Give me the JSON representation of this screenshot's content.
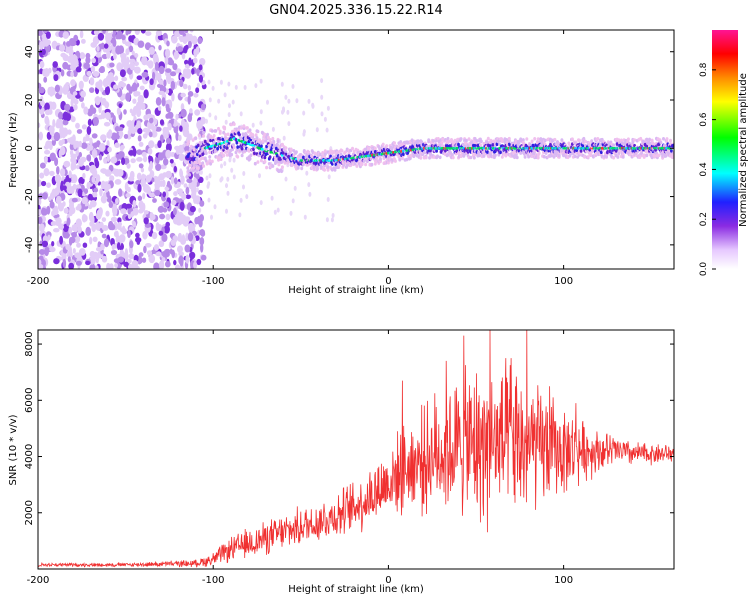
{
  "title": "GN04.2025.336.15.22.R14",
  "chart_data": [
    {
      "type": "heatmap",
      "xlabel": "Height of straight line (km)",
      "ylabel": "Frequency (Hz)",
      "xlim": [
        -200,
        163
      ],
      "ylim": [
        -50,
        49
      ],
      "xticks": [
        -200,
        -100,
        0,
        100
      ],
      "yticks": [
        -40,
        -20,
        0,
        20,
        40
      ],
      "colorbar": {
        "label": "Normalized spectral amplitude",
        "range": [
          0.0,
          0.96
        ],
        "ticks": [
          "0.0",
          "0.2",
          "0.4",
          "0.6",
          "0.8"
        ]
      },
      "ridge": {
        "x": [
          -115,
          -105,
          -95,
          -88,
          -80,
          -70,
          -60,
          -50,
          -40,
          -30,
          -20,
          -10,
          0,
          10,
          20,
          40,
          60,
          80,
          100,
          120,
          140,
          163
        ],
        "frequency": [
          -5,
          0,
          2,
          4,
          2,
          -1,
          -3,
          -5,
          -5,
          -5,
          -4,
          -3,
          -2,
          -1,
          0,
          0,
          0,
          0,
          0,
          0,
          0,
          0
        ]
      },
      "noise_region_x": [
        -200,
        -105
      ]
    },
    {
      "type": "line",
      "xlabel": "Height of straight line (km)",
      "ylabel": "SNR (10 * v/v)",
      "xlim": [
        -200,
        163
      ],
      "ylim": [
        0,
        8500
      ],
      "xticks": [
        -200,
        -100,
        0,
        100
      ],
      "yticks": [
        2000,
        4000,
        6000,
        8000
      ],
      "series": [
        {
          "name": "SNR",
          "color": "#f03030",
          "envelope": {
            "x": [
              -200,
              -150,
              -110,
              -100,
              -90,
              -80,
              -70,
              -60,
              -50,
              -40,
              -30,
              -20,
              -10,
              0,
              10,
              20,
              30,
              40,
              50,
              60,
              70,
              80,
              90,
              100,
              110,
              120,
              130,
              140,
              150,
              163
            ],
            "mean": [
              150,
              150,
              200,
              350,
              700,
              900,
              1100,
              1300,
              1500,
              1700,
              1900,
              2200,
              2600,
              3100,
              3600,
              3900,
              4200,
              4300,
              4400,
              4400,
              4400,
              4300,
              4300,
              4200,
              4200,
              4200,
              4200,
              4100,
              4100,
              4100
            ],
            "spread": [
              80,
              80,
              150,
              300,
              500,
              650,
              700,
              750,
              800,
              900,
              950,
              1100,
              1300,
              1500,
              1800,
              2200,
              2600,
              3000,
              3300,
              3400,
              3300,
              2900,
              2400,
              1800,
              1300,
              900,
              650,
              500,
              450,
              400
            ]
          },
          "peaks": [
            {
              "x": 8,
              "y": 6700
            },
            {
              "x": 33,
              "y": 7400
            },
            {
              "x": 43,
              "y": 8300
            },
            {
              "x": 58,
              "y": 8500
            },
            {
              "x": 70,
              "y": 7500
            },
            {
              "x": 79,
              "y": 8500
            },
            {
              "x": 92,
              "y": 6500
            },
            {
              "x": 107,
              "y": 5900
            }
          ]
        }
      ]
    }
  ]
}
